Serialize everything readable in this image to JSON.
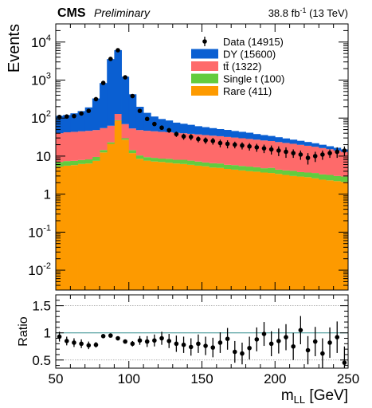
{
  "header": {
    "experiment": "CMS",
    "status": "Preliminary",
    "lumi_main": "38.8 fb",
    "lumi_exp": "-1",
    "lumi_energy": " (13 TeV)"
  },
  "axes": {
    "ylabel": "Events",
    "ratio_label": "Ratio",
    "xlabel_main": "m",
    "xlabel_sub": "LL",
    "xlabel_unit": " [GeV]"
  },
  "legend": [
    {
      "label": "Data (14915)",
      "kind": "data"
    },
    {
      "label": "DY (15600)",
      "kind": "fill",
      "color": "#0a5fd2"
    },
    {
      "label": "tt̄ (1322)",
      "kind": "fill",
      "color": "#fe6a6a"
    },
    {
      "label": "Single t (100)",
      "kind": "fill",
      "color": "#63cc3e"
    },
    {
      "label": "Rare (411)",
      "kind": "fill",
      "color": "#fd9a00"
    }
  ],
  "chart_data": {
    "type": "bar",
    "stacked": true,
    "xlim": [
      50,
      250
    ],
    "ylim": [
      0.003,
      30000
    ],
    "yscale": "log",
    "bin_edges": [
      50,
      55,
      60,
      65,
      70,
      75,
      80,
      85,
      90,
      95,
      100,
      105,
      110,
      115,
      120,
      125,
      130,
      135,
      140,
      145,
      150,
      155,
      160,
      165,
      170,
      175,
      180,
      185,
      190,
      195,
      200,
      205,
      210,
      215,
      220,
      225,
      230,
      235,
      240,
      245,
      250
    ],
    "xticks": [
      50,
      100,
      150,
      200,
      250
    ],
    "yticks": [
      {
        "value": 0.01,
        "base": "10",
        "exp": "-2"
      },
      {
        "value": 0.1,
        "base": "10",
        "exp": "-1"
      },
      {
        "value": 1,
        "base": "1",
        "exp": ""
      },
      {
        "value": 10,
        "base": "10",
        "exp": ""
      },
      {
        "value": 100,
        "base": "10",
        "exp": "2"
      },
      {
        "value": 1000,
        "base": "10",
        "exp": "3"
      },
      {
        "value": 10000,
        "base": "10",
        "exp": "4"
      }
    ],
    "series": [
      {
        "name": "Rare (411)",
        "color": "#fd9a00",
        "values": [
          5.3,
          5.6,
          5.8,
          6.2,
          6.4,
          7.5,
          12.5,
          21,
          85,
          27,
          12,
          8.5,
          7.6,
          7.2,
          7.0,
          6.7,
          6.4,
          6.2,
          5.9,
          5.6,
          5.4,
          5.0,
          4.9,
          4.6,
          4.4,
          4.2,
          4.0,
          3.9,
          3.7,
          3.6,
          3.4,
          3.2,
          3.0,
          2.9,
          2.8,
          2.6,
          2.4,
          2.3,
          2.2,
          2.1
        ]
      },
      {
        "name": "Single t (100)",
        "color": "#63cc3e",
        "values": [
          1.7,
          1.8,
          1.7,
          1.7,
          1.8,
          2.0,
          2.0,
          2.0,
          2.5,
          2.5,
          2.4,
          1.9,
          1.8,
          1.8,
          1.6,
          1.8,
          1.6,
          1.8,
          1.7,
          1.6,
          1.4,
          1.5,
          1.5,
          1.3,
          1.4,
          1.3,
          1.3,
          1.2,
          1.1,
          1.3,
          1.0,
          1.0,
          1.1,
          0.9,
          0.9,
          1.0,
          0.9,
          0.9,
          0.8,
          0.8
        ]
      },
      {
        "name": "tt̄ (1322)",
        "color": "#fe6a6a",
        "values": [
          33,
          35,
          36,
          37,
          38,
          39,
          40,
          40,
          41,
          40,
          39,
          38,
          37,
          36,
          35,
          34,
          33,
          32,
          31,
          30,
          29,
          28,
          27,
          26,
          25,
          24,
          23,
          22,
          21,
          20,
          19,
          18,
          17,
          16,
          15,
          14,
          13,
          12,
          11,
          10
        ]
      },
      {
        "name": "DY (15600)",
        "color": "#0a5fd2",
        "values": [
          75,
          78,
          90,
          108,
          145,
          280,
          780,
          3500,
          6000,
          1160,
          370,
          150,
          91,
          65,
          51,
          44,
          35,
          31,
          28,
          24,
          22,
          20,
          18,
          17,
          15,
          14,
          13,
          11,
          10,
          9,
          8,
          7,
          6,
          5.5,
          4.8,
          4.2,
          3.6,
          3.0,
          2.6,
          2.1
        ]
      }
    ],
    "data_points": {
      "name": "Data (14915)",
      "values": [
        107,
        110,
        113,
        132,
        155,
        315,
        840,
        3600,
        6100,
        1180,
        380,
        155,
        95,
        70,
        56,
        48,
        38,
        33,
        32,
        28,
        26,
        25,
        22,
        21,
        20,
        19,
        18,
        17,
        16,
        15,
        14,
        13,
        12,
        11,
        9,
        10,
        11,
        12,
        13,
        14
      ],
      "errors": [
        10,
        10,
        11,
        11,
        12,
        18,
        29,
        60,
        78,
        34,
        19,
        12,
        10,
        8,
        7,
        7,
        6,
        6,
        6,
        5,
        5,
        5,
        5,
        5,
        4,
        4,
        4,
        4,
        4,
        4,
        4,
        4,
        3,
        3,
        3,
        3,
        3,
        3,
        4,
        4
      ]
    },
    "ratio": {
      "ylabel": "Ratio",
      "ylim": [
        0.35,
        1.7
      ],
      "yticks": [
        0.5,
        1,
        1.5
      ],
      "yticklabels": [
        "0.5",
        "1",
        "1.5"
      ],
      "grid_lines": [
        0.5,
        1.5
      ],
      "reference_line": 1,
      "values": [
        0.93,
        0.85,
        0.82,
        0.8,
        0.77,
        0.78,
        0.94,
        0.95,
        0.9,
        0.84,
        0.8,
        0.86,
        0.84,
        0.86,
        0.9,
        0.85,
        0.8,
        0.78,
        0.74,
        0.8,
        0.76,
        0.73,
        0.82,
        0.89,
        0.65,
        0.62,
        0.72,
        0.88,
        0.98,
        0.8,
        0.85,
        0.92,
        0.75,
        1.05,
        0.68,
        0.84,
        0.62,
        0.82,
        0.92,
        0.45
      ],
      "errors": [
        0.09,
        0.08,
        0.08,
        0.08,
        0.07,
        0.05,
        0.03,
        0.02,
        0.015,
        0.03,
        0.05,
        0.08,
        0.1,
        0.11,
        0.12,
        0.13,
        0.15,
        0.15,
        0.16,
        0.17,
        0.17,
        0.18,
        0.19,
        0.2,
        0.2,
        0.2,
        0.21,
        0.22,
        0.22,
        0.23,
        0.23,
        0.24,
        0.25,
        0.26,
        0.26,
        0.27,
        0.28,
        0.28,
        0.29,
        0.3
      ]
    }
  }
}
